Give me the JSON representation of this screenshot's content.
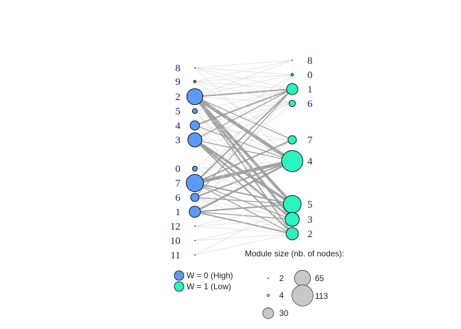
{
  "colors": {
    "high": "#5b9bf8",
    "low": "#28f5c0",
    "edge": "#9e9e9e",
    "size_legend_fill": "#c8c8c8",
    "label": "#1a1a7a"
  },
  "left_nodes": [
    {
      "label": "8",
      "size": 2
    },
    {
      "label": "9",
      "size": 4
    },
    {
      "label": "2",
      "size": 65
    },
    {
      "label": "5",
      "size": 6
    },
    {
      "label": "4",
      "size": 22
    },
    {
      "label": "3",
      "size": 50
    },
    {
      "label": "0",
      "size": 6
    },
    {
      "label": "7",
      "size": 75
    },
    {
      "label": "6",
      "size": 18
    },
    {
      "label": "1",
      "size": 32
    },
    {
      "label": "12",
      "size": 2
    },
    {
      "label": "10",
      "size": 2
    },
    {
      "label": "11",
      "size": 2
    }
  ],
  "right_nodes": [
    {
      "label": "8",
      "size": 2
    },
    {
      "label": "0",
      "size": 4
    },
    {
      "label": "1",
      "size": 32
    },
    {
      "label": "6",
      "size": 10
    },
    {
      "label": "7",
      "size": 18
    },
    {
      "label": "4",
      "size": 113
    },
    {
      "label": "5",
      "size": 80
    },
    {
      "label": "3",
      "size": 50
    },
    {
      "label": "2",
      "size": 38
    }
  ],
  "edges": [
    [
      "2",
      "4",
      7
    ],
    [
      "2",
      "5",
      6
    ],
    [
      "2",
      "3",
      5
    ],
    [
      "2",
      "1",
      3
    ],
    [
      "2",
      "2",
      3
    ],
    [
      "2",
      "7",
      2
    ],
    [
      "2",
      "6",
      1
    ],
    [
      "2",
      "0",
      1
    ],
    [
      "2",
      "8",
      1
    ],
    [
      "5",
      "5",
      1
    ],
    [
      "5",
      "3",
      1
    ],
    [
      "5",
      "4",
      1
    ],
    [
      "5",
      "1",
      1
    ],
    [
      "5",
      "6",
      1
    ],
    [
      "4",
      "1",
      3
    ],
    [
      "4",
      "4",
      2
    ],
    [
      "4",
      "5",
      1
    ],
    [
      "4",
      "7",
      1
    ],
    [
      "4",
      "2",
      1
    ],
    [
      "4",
      "6",
      1
    ],
    [
      "3",
      "5",
      5
    ],
    [
      "3",
      "3",
      4
    ],
    [
      "3",
      "2",
      3
    ],
    [
      "3",
      "4",
      2
    ],
    [
      "3",
      "1",
      2
    ],
    [
      "3",
      "6",
      1
    ],
    [
      "3",
      "7",
      1
    ],
    [
      "3",
      "0",
      1
    ],
    [
      "0",
      "4",
      1
    ],
    [
      "0",
      "5",
      1
    ],
    [
      "0",
      "1",
      1
    ],
    [
      "7",
      "4",
      7
    ],
    [
      "7",
      "7",
      3
    ],
    [
      "7",
      "1",
      3
    ],
    [
      "7",
      "5",
      3
    ],
    [
      "7",
      "3",
      2
    ],
    [
      "7",
      "2",
      2
    ],
    [
      "7",
      "6",
      1
    ],
    [
      "7",
      "0",
      1
    ],
    [
      "6",
      "4",
      3
    ],
    [
      "6",
      "5",
      2
    ],
    [
      "6",
      "1",
      2
    ],
    [
      "6",
      "3",
      1
    ],
    [
      "6",
      "2",
      1
    ],
    [
      "6",
      "7",
      1
    ],
    [
      "1",
      "4",
      4
    ],
    [
      "1",
      "5",
      3
    ],
    [
      "1",
      "2",
      3
    ],
    [
      "1",
      "3",
      2
    ],
    [
      "1",
      "7",
      1
    ],
    [
      "1",
      "1",
      1
    ],
    [
      "8",
      "0",
      1
    ],
    [
      "8",
      "8",
      1
    ],
    [
      "8",
      "1",
      1
    ],
    [
      "8",
      "6",
      1
    ],
    [
      "8",
      "4",
      1
    ],
    [
      "9",
      "0",
      1
    ],
    [
      "9",
      "8",
      1
    ],
    [
      "9",
      "1",
      1
    ],
    [
      "9",
      "6",
      1
    ],
    [
      "9",
      "7",
      1
    ],
    [
      "12",
      "2",
      1
    ],
    [
      "12",
      "3",
      1
    ],
    [
      "12",
      "5",
      1
    ],
    [
      "10",
      "2",
      1
    ],
    [
      "10",
      "3",
      1
    ],
    [
      "11",
      "2",
      1
    ],
    [
      "11",
      "5",
      1
    ]
  ],
  "legend": {
    "group_high": "W = 0 (High)",
    "group_low": "W = 1 (Low)",
    "size_title": "Module size (nb. of nodes):",
    "sizes": [
      {
        "label": "2",
        "size": 2
      },
      {
        "label": "4",
        "size": 4
      },
      {
        "label": "30",
        "size": 30
      },
      {
        "label": "65",
        "size": 65
      },
      {
        "label": "113",
        "size": 113
      }
    ]
  }
}
